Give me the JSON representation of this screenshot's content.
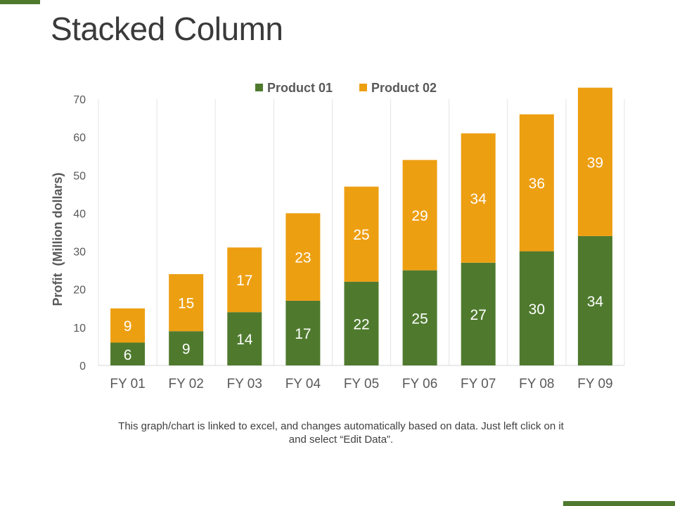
{
  "slide": {
    "title": "Stacked Column",
    "accent_color": "#4f7a2e",
    "footnote_line1": "This graph/chart is linked to excel, and changes automatically based on data. Just left click on it",
    "footnote_line2": "and select “Edit Data”."
  },
  "chart_data": {
    "type": "bar",
    "stacked": true,
    "title": "",
    "xlabel": "",
    "ylabel": "Profit  (Million dollars)",
    "categories": [
      "FY 01",
      "FY 02",
      "FY 03",
      "FY 04",
      "FY 05",
      "FY 06",
      "FY 07",
      "FY 08",
      "FY 09"
    ],
    "series": [
      {
        "name": "Product 01",
        "color": "#4f7a2e",
        "values": [
          6,
          9,
          14,
          17,
          22,
          25,
          27,
          30,
          34
        ]
      },
      {
        "name": "Product 02",
        "color": "#ed9f12",
        "values": [
          9,
          15,
          17,
          23,
          25,
          29,
          34,
          36,
          39
        ]
      }
    ],
    "ylim": [
      0,
      70
    ],
    "yticks": [
      0,
      10,
      20,
      30,
      40,
      50,
      60,
      70
    ],
    "grid": "vertical-category-separators",
    "legend_position": "top"
  }
}
